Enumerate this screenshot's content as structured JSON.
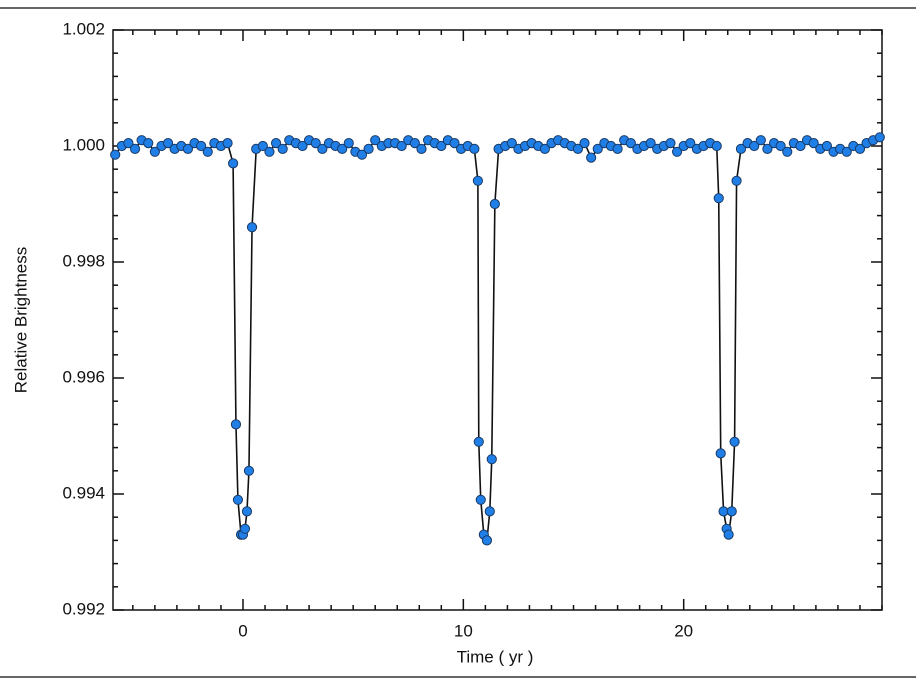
{
  "chart_data": {
    "type": "line",
    "xlabel": "Time ( yr )",
    "ylabel": "Relative Brightness",
    "xlim": [
      -5.9,
      29
    ],
    "ylim": [
      0.992,
      1.002
    ],
    "xticks": [
      0,
      10,
      20
    ],
    "yticks": [
      0.992,
      0.994,
      0.996,
      0.998,
      {
        "value": 1,
        "label": "1.000"
      },
      1.002
    ],
    "series": [
      {
        "color": "#1f7fe6",
        "x": [
          -5.8,
          -5.5,
          -5.2,
          -4.9,
          -4.6,
          -4.3,
          -4.0,
          -3.7,
          -3.4,
          -3.1,
          -2.8,
          -2.5,
          -2.2,
          -1.9,
          -1.6,
          -1.3,
          -1.0,
          -0.7,
          -0.45,
          -0.32,
          -0.23,
          -0.09,
          0,
          0.09,
          0.18,
          0.27,
          0.41,
          0.6,
          0.9,
          1.2,
          1.5,
          1.8,
          2.1,
          2.4,
          2.7,
          3.0,
          3.3,
          3.6,
          3.9,
          4.2,
          4.5,
          4.8,
          5.1,
          5.4,
          5.7,
          6.0,
          6.3,
          6.6,
          6.9,
          7.2,
          7.5,
          7.8,
          8.1,
          8.4,
          8.7,
          9.0,
          9.3,
          9.6,
          9.9,
          10.2,
          10.5,
          10.66,
          10.7,
          10.79,
          10.93,
          11.07,
          11.2,
          11.29,
          11.43,
          11.6,
          11.9,
          12.2,
          12.5,
          12.8,
          13.1,
          13.4,
          13.7,
          14.0,
          14.3,
          14.6,
          14.9,
          15.2,
          15.5,
          15.8,
          16.1,
          16.4,
          16.7,
          17.0,
          17.3,
          17.6,
          17.9,
          18.2,
          18.5,
          18.8,
          19.1,
          19.4,
          19.7,
          20.0,
          20.3,
          20.6,
          20.9,
          21.2,
          21.5,
          21.59,
          21.68,
          21.81,
          21.95,
          22.04,
          22.18,
          22.31,
          22.4,
          22.6,
          22.9,
          23.2,
          23.5,
          23.8,
          24.1,
          24.4,
          24.7,
          25.0,
          25.3,
          25.6,
          25.9,
          26.2,
          26.5,
          26.8,
          27.1,
          27.4,
          27.7,
          28.0,
          28.3,
          28.6,
          28.9
        ],
        "values": [
          0.99985,
          1.0,
          1.00005,
          0.99995,
          1.0001,
          1.00005,
          0.9999,
          1.0,
          1.00005,
          0.99995,
          1.0,
          0.99995,
          1.00005,
          1.0,
          0.9999,
          1.00005,
          1.0,
          1.00005,
          0.9997,
          0.9952,
          0.9939,
          0.9933,
          0.9933,
          0.9934,
          0.9937,
          0.9944,
          0.9986,
          0.99995,
          1.0,
          0.9999,
          1.00005,
          0.99995,
          1.0001,
          1.00005,
          1.0,
          1.0001,
          1.00005,
          0.99995,
          1.00005,
          1.0,
          0.99995,
          1.00005,
          0.9999,
          0.99985,
          0.99995,
          1.0001,
          1.0,
          1.00005,
          1.00005,
          1.0,
          1.0001,
          1.00005,
          0.99995,
          1.0001,
          1.00005,
          1.0,
          1.0001,
          1.00005,
          0.99995,
          1.0,
          0.99995,
          0.9994,
          0.9949,
          0.9939,
          0.9933,
          0.9932,
          0.9937,
          0.9946,
          0.999,
          0.99995,
          1.0,
          1.00005,
          0.99995,
          1.0,
          1.00005,
          1.0,
          0.99995,
          1.00005,
          1.0001,
          1.00005,
          1.0,
          0.99995,
          1.00005,
          0.9998,
          0.99995,
          1.00005,
          1.0,
          0.99995,
          1.0001,
          1.00005,
          0.99995,
          1.0,
          1.00005,
          0.99995,
          1.0,
          1.00005,
          0.9999,
          1.0,
          1.00005,
          0.99995,
          1.0,
          1.00005,
          1.0,
          0.9991,
          0.9947,
          0.9937,
          0.9934,
          0.9933,
          0.9937,
          0.9949,
          0.9994,
          0.99995,
          1.00005,
          1.0,
          1.0001,
          0.99995,
          1.00005,
          1.0,
          0.9999,
          1.00005,
          1.0,
          1.0001,
          1.00005,
          0.99995,
          1.0,
          0.9999,
          0.99995,
          0.9999,
          1.0,
          0.99995,
          1.00005,
          1.0001,
          1.00015
        ]
      }
    ]
  }
}
